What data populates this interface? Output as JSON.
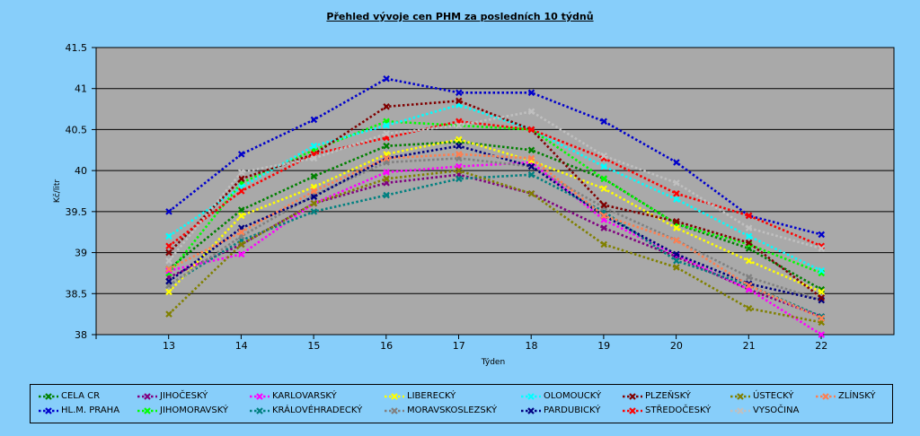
{
  "chart_data": {
    "type": "line",
    "title": "Přehled vývoje cen PHM za posledních 10 týdnů",
    "xlabel": "Týden",
    "ylabel": "Kč/litr",
    "x": [
      13,
      14,
      15,
      16,
      17,
      18,
      19,
      20,
      21,
      22
    ],
    "x_tick_labels": [
      "13",
      "14",
      "15",
      "16",
      "17",
      "18",
      "19",
      "20",
      "21",
      "22"
    ],
    "y_tick_labels": [
      "38",
      "38.5",
      "39",
      "39.5",
      "40",
      "40.5",
      "41",
      "41.5"
    ],
    "ylim": [
      38,
      41.5
    ],
    "grid": true,
    "series": [
      {
        "name": "CELA CR",
        "color": "#008000",
        "values": [
          38.8,
          39.52,
          39.93,
          40.3,
          40.35,
          40.25,
          39.9,
          39.35,
          39.05,
          38.55
        ]
      },
      {
        "name": "HL.M. PRAHA",
        "color": "#0000cc",
        "values": [
          39.5,
          40.2,
          40.62,
          41.12,
          40.95,
          40.95,
          40.6,
          40.1,
          39.45,
          39.22
        ]
      },
      {
        "name": "JIHOČESKÝ",
        "color": "#800080",
        "values": [
          38.7,
          39.1,
          39.6,
          39.85,
          39.95,
          39.72,
          39.3,
          38.95,
          38.55,
          38.22
        ]
      },
      {
        "name": "JIHOMORAVSKÝ",
        "color": "#00ff00",
        "values": [
          38.75,
          39.85,
          40.25,
          40.6,
          40.55,
          40.5,
          39.9,
          39.35,
          39.1,
          38.75
        ]
      },
      {
        "name": "KARLOVARSKÝ",
        "color": "#ff00ff",
        "values": [
          38.78,
          38.98,
          39.6,
          39.98,
          40.05,
          40.1,
          39.4,
          38.97,
          38.55,
          38.0
        ]
      },
      {
        "name": "KRÁLOVÉHRADECKÝ",
        "color": "#008080",
        "values": [
          38.6,
          39.15,
          39.5,
          39.7,
          39.9,
          39.95,
          39.5,
          38.9,
          38.6,
          38.22
        ]
      },
      {
        "name": "LIBERECKÝ",
        "color": "#ffff00",
        "values": [
          38.52,
          39.45,
          39.8,
          40.2,
          40.38,
          40.12,
          39.78,
          39.3,
          38.9,
          38.52
        ]
      },
      {
        "name": "MORAVSKOSLEZSKÝ",
        "color": "#808080",
        "values": [
          38.6,
          39.2,
          39.7,
          40.1,
          40.15,
          40.05,
          39.55,
          39.15,
          38.7,
          38.42
        ]
      },
      {
        "name": "OLOMOUCKÝ",
        "color": "#00ffff",
        "values": [
          39.2,
          39.8,
          40.3,
          40.55,
          40.8,
          40.5,
          40.05,
          39.65,
          39.2,
          38.78
        ]
      },
      {
        "name": "PARDUBICKÝ",
        "color": "#000080",
        "values": [
          38.65,
          39.3,
          39.68,
          40.15,
          40.3,
          40.05,
          39.45,
          38.98,
          38.62,
          38.42
        ]
      },
      {
        "name": "PLZEŇSKÝ",
        "color": "#800000",
        "values": [
          39.0,
          39.9,
          40.2,
          40.78,
          40.85,
          40.5,
          39.58,
          39.38,
          39.12,
          38.45
        ]
      },
      {
        "name": "STŘEDOČESKÝ",
        "color": "#ff0000",
        "values": [
          39.08,
          39.75,
          40.2,
          40.4,
          40.6,
          40.5,
          40.15,
          39.72,
          39.45,
          39.08
        ]
      },
      {
        "name": "ÚSTECKÝ",
        "color": "#808000",
        "values": [
          38.25,
          39.1,
          39.6,
          39.9,
          40.0,
          39.72,
          39.1,
          38.82,
          38.32,
          38.15
        ]
      },
      {
        "name": "VYSOČINA",
        "color": "#c0c0c0",
        "values": [
          38.9,
          39.98,
          40.15,
          40.45,
          40.55,
          40.72,
          40.18,
          39.85,
          39.3,
          39.05
        ]
      },
      {
        "name": "ZLÍNSKÝ",
        "color": "#ff7f50",
        "values": [
          38.8,
          39.25,
          39.75,
          40.15,
          40.2,
          40.15,
          39.45,
          39.15,
          38.6,
          38.2
        ]
      }
    ]
  }
}
